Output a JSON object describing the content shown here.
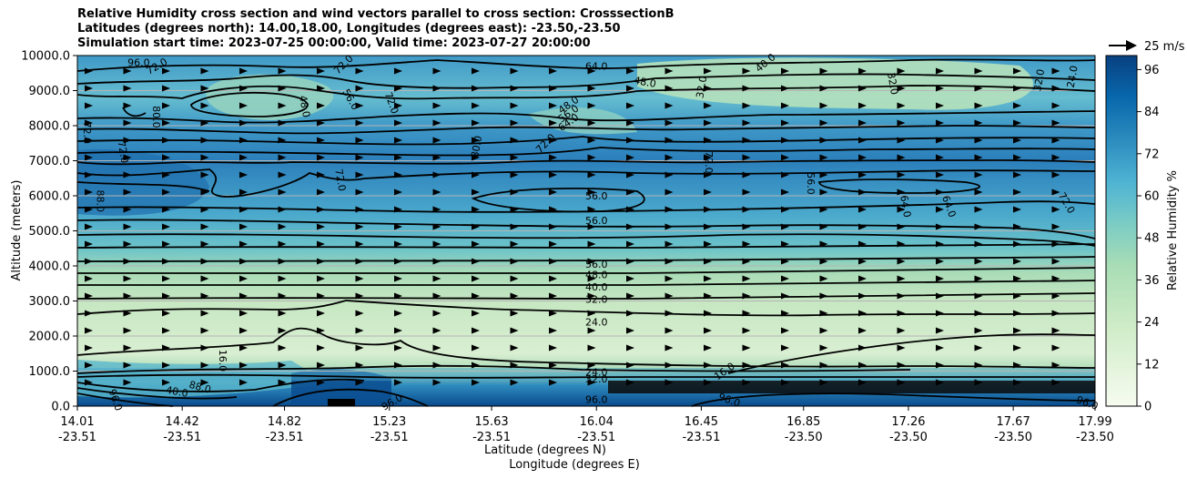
{
  "title": {
    "line1": "Relative Humidity cross section and wind vectors parallel to cross section: CrosssectionB",
    "line2": "Latitudes (degrees north): 14.00,18.00, Longitudes (degrees east): -23.50,-23.50",
    "line3": "Simulation start time: 2023-07-25 00:00:00, Valid time: 2023-07-27 20:00:00"
  },
  "chart_data": {
    "type": "heatmap",
    "xlabel": "Latitude (degrees N)",
    "xlabel2": "Longitude (degrees E)",
    "ylabel": "Altitude (meters)",
    "xlim": [
      14.01,
      17.99
    ],
    "ylim": [
      0,
      10000
    ],
    "x_ticks": [
      {
        "lat": "14.01",
        "lon": "-23.51",
        "x": 14.01
      },
      {
        "lat": "14.42",
        "lon": "-23.51",
        "x": 14.42
      },
      {
        "lat": "14.82",
        "lon": "-23.51",
        "x": 14.82
      },
      {
        "lat": "15.23",
        "lon": "-23.51",
        "x": 15.23
      },
      {
        "lat": "15.63",
        "lon": "-23.51",
        "x": 15.63
      },
      {
        "lat": "16.04",
        "lon": "-23.51",
        "x": 16.04
      },
      {
        "lat": "16.45",
        "lon": "-23.51",
        "x": 16.45
      },
      {
        "lat": "16.85",
        "lon": "-23.50",
        "x": 16.85
      },
      {
        "lat": "17.26",
        "lon": "-23.50",
        "x": 17.26
      },
      {
        "lat": "17.67",
        "lon": "-23.50",
        "x": 17.67
      },
      {
        "lat": "17.99",
        "lon": "-23.50",
        "x": 17.99
      }
    ],
    "y_ticks": [
      "0.0",
      "1000.0",
      "2000.0",
      "3000.0",
      "4000.0",
      "5000.0",
      "6000.0",
      "7000.0",
      "8000.0",
      "9000.0",
      "10000.0"
    ],
    "colorbar": {
      "label": "Relative Humidity %",
      "ticks": [
        "0",
        "12",
        "24",
        "36",
        "48",
        "60",
        "72",
        "84",
        "96"
      ],
      "range": [
        0,
        100
      ]
    },
    "quiver_key": "25 m/s",
    "contour_labels": [
      {
        "text": "96.0",
        "x": 14.25,
        "y": 9800,
        "rot": 0
      },
      {
        "text": "72.0",
        "x": 14.32,
        "y": 9700,
        "rot": -30
      },
      {
        "text": "72.0",
        "x": 15.05,
        "y": 9750,
        "rot": -45
      },
      {
        "text": "64.0",
        "x": 16.04,
        "y": 9700,
        "rot": 0
      },
      {
        "text": "48.0",
        "x": 16.23,
        "y": 9250,
        "rot": 10
      },
      {
        "text": "40.0",
        "x": 16.7,
        "y": 9800,
        "rot": -40
      },
      {
        "text": "32.0",
        "x": 16.45,
        "y": 9100,
        "rot": -80
      },
      {
        "text": "32.0",
        "x": 17.2,
        "y": 9200,
        "rot": 80
      },
      {
        "text": "32.0",
        "x": 17.77,
        "y": 9300,
        "rot": -80
      },
      {
        "text": "24.0",
        "x": 17.9,
        "y": 9400,
        "rot": -80
      },
      {
        "text": "48.0",
        "x": 14.9,
        "y": 8550,
        "rot": 80
      },
      {
        "text": "56.0",
        "x": 15.08,
        "y": 8750,
        "rot": 60
      },
      {
        "text": "72.0",
        "x": 15.24,
        "y": 8650,
        "rot": 70
      },
      {
        "text": "80.0",
        "x": 14.32,
        "y": 8250,
        "rot": 90
      },
      {
        "text": "72.0",
        "x": 14.05,
        "y": 7800,
        "rot": 90
      },
      {
        "text": "72.0",
        "x": 14.19,
        "y": 7250,
        "rot": 80
      },
      {
        "text": "48.0",
        "x": 15.93,
        "y": 8600,
        "rot": -35
      },
      {
        "text": "56.0",
        "x": 15.93,
        "y": 8350,
        "rot": -35
      },
      {
        "text": "64.0",
        "x": 15.93,
        "y": 8100,
        "rot": -35
      },
      {
        "text": "80.0",
        "x": 15.57,
        "y": 7400,
        "rot": -80
      },
      {
        "text": "72.0",
        "x": 15.84,
        "y": 7500,
        "rot": -45
      },
      {
        "text": "72.0",
        "x": 15.04,
        "y": 6450,
        "rot": 80
      },
      {
        "text": "72.0",
        "x": 16.48,
        "y": 6950,
        "rot": 90
      },
      {
        "text": "56.0",
        "x": 16.04,
        "y": 6000,
        "rot": 0
      },
      {
        "text": "56.0",
        "x": 16.04,
        "y": 5300,
        "rot": 0
      },
      {
        "text": "56.0",
        "x": 16.88,
        "y": 6350,
        "rot": 90
      },
      {
        "text": "64.0",
        "x": 17.25,
        "y": 5700,
        "rot": 80
      },
      {
        "text": "64.0",
        "x": 17.42,
        "y": 5700,
        "rot": 70
      },
      {
        "text": "72.0",
        "x": 17.88,
        "y": 5800,
        "rot": 60
      },
      {
        "text": "88.0",
        "x": 14.1,
        "y": 5850,
        "rot": 90
      },
      {
        "text": "56.0",
        "x": 16.04,
        "y": 4050,
        "rot": 0
      },
      {
        "text": "48.0",
        "x": 16.04,
        "y": 3750,
        "rot": 0
      },
      {
        "text": "40.0",
        "x": 16.04,
        "y": 3400,
        "rot": 0
      },
      {
        "text": "32.0",
        "x": 16.04,
        "y": 3050,
        "rot": 0
      },
      {
        "text": "24.0",
        "x": 16.04,
        "y": 2400,
        "rot": 0
      },
      {
        "text": "16.0",
        "x": 14.58,
        "y": 1300,
        "rot": 90
      },
      {
        "text": "16.0",
        "x": 16.54,
        "y": 1000,
        "rot": -35
      },
      {
        "text": "24.0",
        "x": 16.04,
        "y": 980,
        "rot": 0
      },
      {
        "text": "32.0",
        "x": 16.04,
        "y": 780,
        "rot": 0
      },
      {
        "text": "40.0",
        "x": 14.4,
        "y": 420,
        "rot": 10
      },
      {
        "text": "88.0",
        "x": 14.49,
        "y": 550,
        "rot": 15
      },
      {
        "text": "96.0",
        "x": 14.16,
        "y": 180,
        "rot": 70
      },
      {
        "text": "96.0",
        "x": 15.24,
        "y": 120,
        "rot": -30
      },
      {
        "text": "96.0",
        "x": 16.04,
        "y": 200,
        "rot": 0
      },
      {
        "text": "96.0",
        "x": 16.56,
        "y": 180,
        "rot": 20
      },
      {
        "text": "96.0",
        "x": 17.96,
        "y": 100,
        "rot": 20
      }
    ]
  }
}
